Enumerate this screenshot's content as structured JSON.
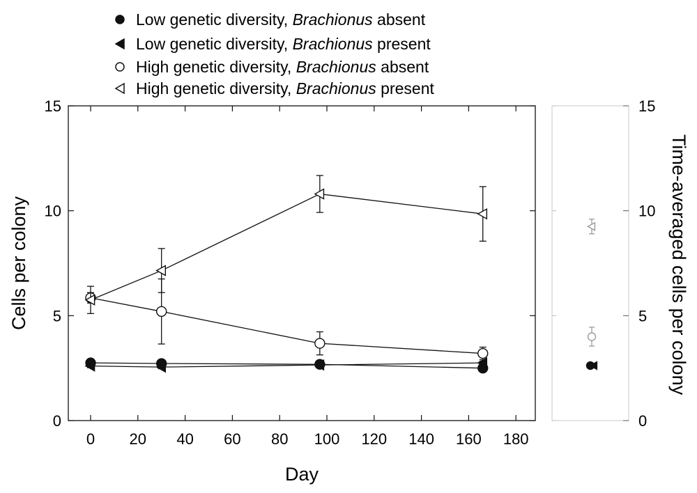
{
  "chart_data": [
    {
      "type": "line",
      "xlabel": "Day",
      "ylabel": "Cells per colony",
      "xlim": [
        -10,
        188
      ],
      "ylim": [
        0,
        15
      ],
      "x_ticks": [
        "0",
        "20",
        "40",
        "60",
        "80",
        "100",
        "120",
        "140",
        "160",
        "180"
      ],
      "x_tick_values": [
        0,
        20,
        40,
        60,
        80,
        100,
        120,
        140,
        160,
        180
      ],
      "y_ticks": [
        "0",
        "5",
        "10",
        "15"
      ],
      "y_tick_values": [
        0,
        5,
        10,
        15
      ],
      "grid": false,
      "legend_position": "top",
      "series": [
        {
          "name": "Low genetic diversity, Brachionus absent",
          "marker": "circle",
          "filled": true,
          "x": [
            0,
            30,
            97,
            166
          ],
          "y": [
            2.75,
            2.72,
            2.68,
            2.5
          ],
          "err": [
            0.08,
            0.08,
            0.08,
            0.08
          ]
        },
        {
          "name": "Low genetic diversity, Brachionus present",
          "marker": "triangle-left",
          "filled": true,
          "x": [
            0,
            30,
            97,
            166
          ],
          "y": [
            2.6,
            2.55,
            2.65,
            2.75
          ],
          "err": [
            0.08,
            0.08,
            0.08,
            0.08
          ]
        },
        {
          "name": "High genetic diversity, Brachionus absent",
          "marker": "circle",
          "filled": false,
          "x": [
            0,
            30,
            97,
            166
          ],
          "y": [
            5.85,
            5.2,
            3.68,
            3.2
          ],
          "err": [
            0.25,
            1.55,
            0.55,
            0.3
          ]
        },
        {
          "name": "High genetic diversity, Brachionus present",
          "marker": "triangle-left",
          "filled": false,
          "x": [
            0,
            30,
            97,
            166
          ],
          "y": [
            5.75,
            7.15,
            10.8,
            9.85
          ],
          "err": [
            0.65,
            1.05,
            0.88,
            1.3
          ]
        }
      ]
    },
    {
      "type": "scatter",
      "ylabel": "Time-averaged cells per colony",
      "ylim": [
        0,
        15
      ],
      "y_ticks": [
        "0",
        "5",
        "10",
        "15"
      ],
      "y_tick_values": [
        0,
        5,
        10,
        15
      ],
      "points": [
        {
          "series": "High genetic diversity, Brachionus present",
          "y": 9.25,
          "err": 0.35,
          "marker": "triangle-left",
          "filled": false
        },
        {
          "series": "High genetic diversity, Brachionus absent",
          "y": 4.0,
          "err": 0.45,
          "marker": "circle",
          "filled": false
        },
        {
          "series": "Low genetic diversity, Brachionus absent",
          "y": 2.62,
          "err": 0.05,
          "marker": "circle",
          "filled": true
        },
        {
          "series": "Low genetic diversity, Brachionus present",
          "y": 2.62,
          "err": 0.05,
          "marker": "triangle-left",
          "filled": true
        }
      ]
    }
  ],
  "legend": [
    {
      "prefix": "Low genetic diversity, ",
      "italic": "Brachionus",
      "suffix": " absent",
      "marker": "circle",
      "filled": true
    },
    {
      "prefix": "Low genetic diversity, ",
      "italic": "Brachionus",
      "suffix": " present",
      "marker": "triangle-left",
      "filled": true
    },
    {
      "prefix": "High genetic diversity, ",
      "italic": "Brachionus",
      "suffix": " absent",
      "marker": "circle",
      "filled": false
    },
    {
      "prefix": "High genetic diversity, ",
      "italic": "Brachionus",
      "suffix": " present",
      "marker": "triangle-left",
      "filled": false
    }
  ]
}
